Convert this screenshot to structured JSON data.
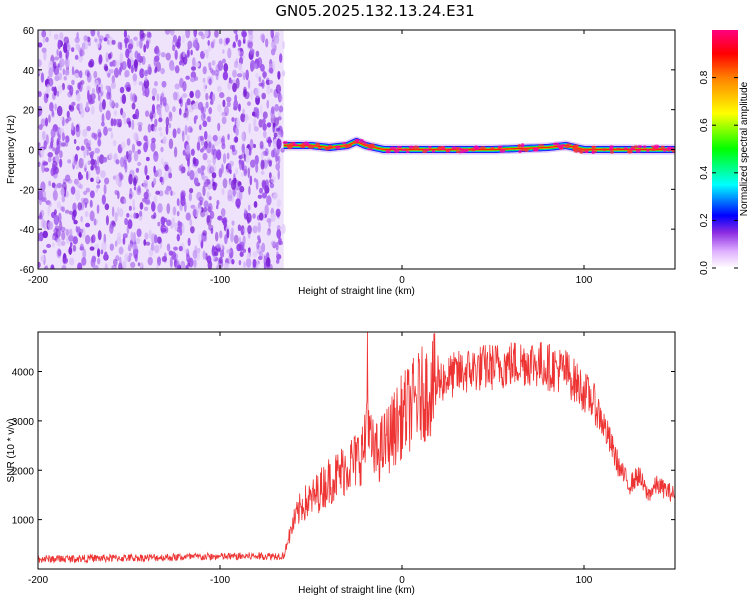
{
  "title": "GN05.2025.132.13.24.E31",
  "chart_data": [
    {
      "type": "heatmap",
      "xlabel": "Height of straight line (km)",
      "ylabel": "Frequency (Hz)",
      "xlim": [
        -200,
        150
      ],
      "ylim": [
        -60,
        60
      ],
      "xticks": [
        -200,
        -100,
        0,
        100
      ],
      "yticks": [
        60,
        40,
        20,
        0,
        -20,
        -40,
        -60
      ],
      "colorbar": {
        "label": "Normalized spectral amplitude",
        "range": [
          0,
          1
        ],
        "ticks": [
          "0.0",
          "0.2",
          "0.4",
          "0.6",
          "0.8"
        ],
        "colormap": [
          "#ffffff",
          "#e8c8ff",
          "#8a2be2",
          "#0000ff",
          "#00ffff",
          "#00ff00",
          "#ffff00",
          "#ff8000",
          "#ff0000",
          "#ff0080"
        ]
      },
      "regions": [
        {
          "x_range": [
            -200,
            -65
          ],
          "description": "broadband noise across all frequencies, amplitude ~0.1-0.3"
        },
        {
          "x_range": [
            -65,
            150
          ],
          "description": "narrow band centred near 0 Hz, amplitude up to ~1.0"
        }
      ],
      "ridge": {
        "x": [
          -65,
          -60,
          -50,
          -40,
          -30,
          -25,
          -20,
          -15,
          -10,
          0,
          20,
          50,
          80,
          90,
          100,
          120,
          150
        ],
        "y": [
          2,
          2,
          2,
          1,
          2,
          4,
          2,
          1,
          0,
          0,
          0,
          0,
          1,
          2,
          0,
          0,
          0
        ]
      }
    },
    {
      "type": "line",
      "xlabel": "Height of straight line (km)",
      "ylabel": "SNR (10 * v/v)",
      "xlim": [
        -200,
        150
      ],
      "ylim": [
        0,
        4800
      ],
      "xticks": [
        -200,
        -100,
        0,
        100
      ],
      "yticks": [
        1000,
        2000,
        3000,
        4000
      ],
      "color": "#ee3333",
      "series": [
        {
          "x": [
            -200,
            -180,
            -160,
            -140,
            -120,
            -100,
            -80,
            -65,
            -60,
            -55,
            -50,
            -45,
            -40,
            -35,
            -30,
            -25,
            -20,
            -19,
            -18,
            -15,
            -10,
            -5,
            0,
            10,
            20,
            30,
            40,
            50,
            60,
            70,
            80,
            90,
            95,
            100,
            105,
            110,
            115,
            120,
            125,
            130,
            135,
            140,
            145,
            150
          ],
          "y": [
            180,
            190,
            200,
            210,
            220,
            230,
            240,
            250,
            900,
            1300,
            1400,
            1600,
            1800,
            1900,
            2100,
            2200,
            2500,
            4300,
            2600,
            2300,
            2500,
            2800,
            3100,
            3500,
            3800,
            3950,
            4050,
            4100,
            4150,
            4200,
            4100,
            4000,
            3800,
            3600,
            3400,
            3000,
            2500,
            2000,
            1700,
            1900,
            1500,
            1700,
            1600,
            1500
          ]
        }
      ]
    }
  ]
}
